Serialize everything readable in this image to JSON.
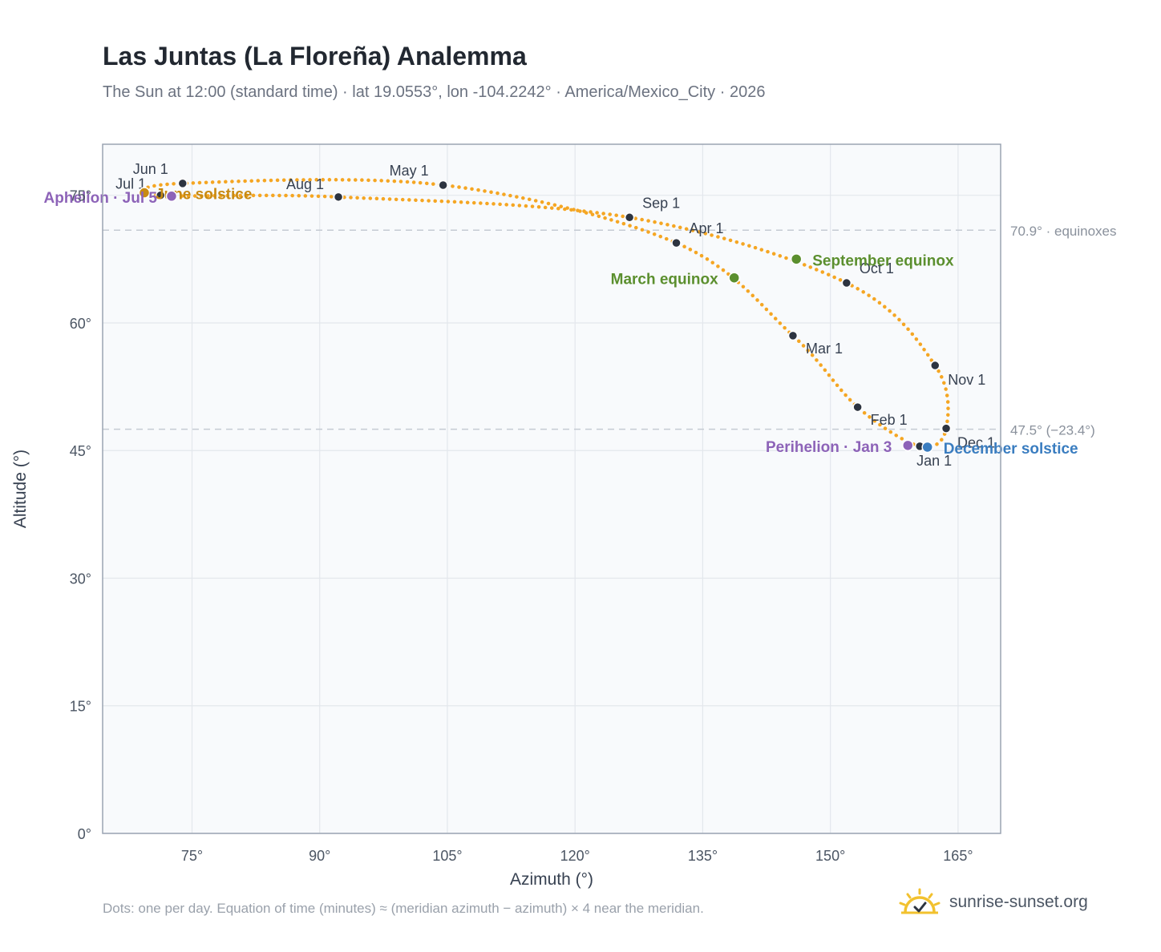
{
  "title": "Las Juntas (La Floreña) Analemma",
  "subtitle": "The Sun at 12:00 (standard time) · lat 19.0553°, lon -104.2242° · America/Mexico_City · 2026",
  "footnote": "Dots: one per day. Equation of time (minutes) ≈ (meridian azimuth − azimuth) × 4 near the meridian.",
  "brand": {
    "name": "sunrise-sunset.org",
    "icon": "sun-logo-icon"
  },
  "colors": {
    "curve": "#f5a623",
    "month_marker": "#2d3440",
    "equinox": "#5b8f2e",
    "december_solstice": "#3a7dc0",
    "june_solstice": "#c88a12",
    "apsis": "#8d63b8",
    "reference_line": "#c5cbd3",
    "plot_bg": "#f8fafc",
    "grid": "#e3e7ec"
  },
  "chart_data": {
    "type": "scatter",
    "xlabel": "Azimuth (°)",
    "ylabel": "Altitude (°)",
    "xlim": [
      64.5,
      170
    ],
    "ylim": [
      0,
      81
    ],
    "x_ticks": [
      75,
      90,
      105,
      120,
      135,
      150,
      165
    ],
    "x_tick_labels": [
      "75°",
      "90°",
      "105°",
      "120°",
      "135°",
      "150°",
      "165°"
    ],
    "y_ticks": [
      0,
      15,
      30,
      45,
      60,
      75
    ],
    "y_tick_labels": [
      "0°",
      "15°",
      "30°",
      "45°",
      "60°",
      "75°"
    ],
    "grid": true,
    "reference_lines": [
      {
        "y": 70.9,
        "label": "70.9° · equinoxes"
      },
      {
        "y": 47.5,
        "label": "47.5° (−23.4°)"
      }
    ],
    "month_markers": [
      {
        "label": "Jan 1",
        "az": 160.5,
        "alt": 45.5
      },
      {
        "label": "Feb 1",
        "az": 153.2,
        "alt": 50.1
      },
      {
        "label": "Mar 1",
        "az": 145.6,
        "alt": 58.5
      },
      {
        "label": "Apr 1",
        "az": 131.9,
        "alt": 69.4
      },
      {
        "label": "May 1",
        "az": 104.5,
        "alt": 76.2
      },
      {
        "label": "Jun 1",
        "az": 73.9,
        "alt": 76.4
      },
      {
        "label": "Jul 1",
        "az": 71.3,
        "alt": 75.0
      },
      {
        "label": "Aug 1",
        "az": 92.2,
        "alt": 74.8
      },
      {
        "label": "Sep 1",
        "az": 126.4,
        "alt": 72.4
      },
      {
        "label": "Oct 1",
        "az": 151.9,
        "alt": 64.7
      },
      {
        "label": "Nov 1",
        "az": 162.3,
        "alt": 55.0
      },
      {
        "label": "Dec 1",
        "az": 163.6,
        "alt": 47.6
      }
    ],
    "events": [
      {
        "label": "June solstice",
        "az": 69.4,
        "alt": 75.3,
        "kind": "june_solstice"
      },
      {
        "label": "Aphelion · Jul 5",
        "az": 72.6,
        "alt": 74.9,
        "kind": "apsis"
      },
      {
        "label": "March equinox",
        "az": 138.7,
        "alt": 65.3,
        "kind": "equinox"
      },
      {
        "label": "September equinox",
        "az": 146.0,
        "alt": 67.5,
        "kind": "equinox"
      },
      {
        "label": "Perihelion · Jan 3",
        "az": 159.1,
        "alt": 45.6,
        "kind": "apsis"
      },
      {
        "label": "December solstice",
        "az": 161.4,
        "alt": 45.4,
        "kind": "december_solstice"
      }
    ]
  }
}
